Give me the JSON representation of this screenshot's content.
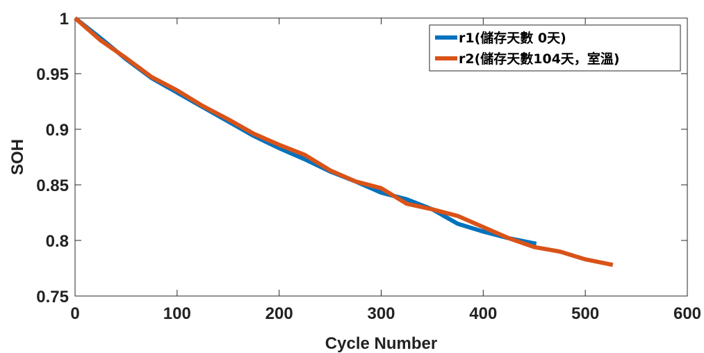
{
  "chart_data": {
    "type": "line",
    "title": "",
    "xlabel": "Cycle Number",
    "ylabel": "SOH",
    "xlim": [
      0,
      600
    ],
    "ylim": [
      0.75,
      1
    ],
    "xticks": [
      0,
      100,
      200,
      300,
      400,
      500,
      600
    ],
    "xtick_labels": [
      "0",
      "100",
      "200",
      "300",
      "400",
      "500",
      "600"
    ],
    "yticks": [
      0.75,
      0.8,
      0.85,
      0.9,
      0.95,
      1
    ],
    "ytick_labels": [
      "0.75",
      "0.8",
      "0.85",
      "0.9",
      "0.95",
      "1"
    ],
    "grid": false,
    "legend_position": "top-right",
    "series": [
      {
        "name": "r1(儲存天數 0天)",
        "color": "#0072BD",
        "x": [
          0,
          25,
          50,
          75,
          100,
          125,
          150,
          175,
          200,
          225,
          250,
          275,
          300,
          325,
          350,
          375,
          400,
          425,
          452
        ],
        "y": [
          1.0,
          0.982,
          0.963,
          0.946,
          0.933,
          0.92,
          0.907,
          0.894,
          0.883,
          0.873,
          0.862,
          0.853,
          0.843,
          0.837,
          0.828,
          0.815,
          0.808,
          0.802,
          0.797
        ]
      },
      {
        "name": "r2(儲存天數104天，室溫)",
        "color": "#D95319",
        "x": [
          0,
          25,
          50,
          75,
          100,
          125,
          150,
          175,
          200,
          225,
          250,
          275,
          300,
          325,
          350,
          375,
          400,
          425,
          450,
          475,
          500,
          527
        ],
        "y": [
          1.0,
          0.98,
          0.964,
          0.947,
          0.935,
          0.921,
          0.909,
          0.896,
          0.886,
          0.877,
          0.863,
          0.853,
          0.847,
          0.833,
          0.828,
          0.822,
          0.812,
          0.802,
          0.794,
          0.79,
          0.783,
          0.778
        ]
      }
    ]
  }
}
